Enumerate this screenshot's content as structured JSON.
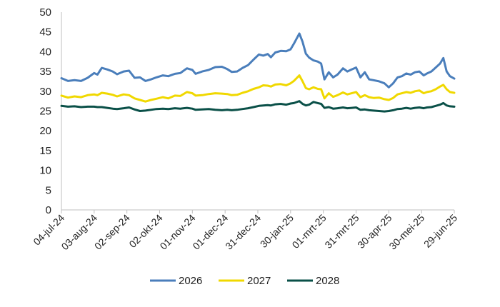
{
  "chart_data": {
    "type": "line",
    "title": "",
    "xlabel": "",
    "ylabel": "",
    "ylim": [
      0,
      50
    ],
    "yticks": [
      0,
      5,
      10,
      15,
      20,
      25,
      30,
      35,
      40,
      45,
      50
    ],
    "ytick_labels": [
      "0",
      "5",
      "10",
      "15",
      "20",
      "25",
      "30",
      "35",
      "40",
      "45",
      "50"
    ],
    "grid": false,
    "legend_position": "bottom",
    "xrange": [
      "2024-07-04",
      "2025-06-29"
    ],
    "xticks": [
      "2024-07-04",
      "2024-08-03",
      "2024-09-02",
      "2024-10-02",
      "2024-11-01",
      "2024-12-01",
      "2024-12-31",
      "2025-01-30",
      "2025-03-01",
      "2025-03-31",
      "2025-04-30",
      "2025-05-30",
      "2025-06-29"
    ],
    "xtick_labels": [
      "04-jul-24",
      "03-aug-24",
      "02-sep-24",
      "02-okt-24",
      "01-nov-24",
      "01-dec-24",
      "31-dec-24",
      "30-jan-25",
      "01-mrt-25",
      "31-mrt-25",
      "30-apr-25",
      "30-mei-25",
      "29-jun-25"
    ],
    "series": [
      {
        "name": "2026",
        "color": "#4a7ebb",
        "points": [
          [
            "2024-07-04",
            33.3
          ],
          [
            "2024-07-10",
            32.6
          ],
          [
            "2024-07-16",
            32.8
          ],
          [
            "2024-07-22",
            32.6
          ],
          [
            "2024-07-28",
            33.4
          ],
          [
            "2024-08-03",
            34.6
          ],
          [
            "2024-08-06",
            34.2
          ],
          [
            "2024-08-10",
            35.9
          ],
          [
            "2024-08-15",
            35.5
          ],
          [
            "2024-08-20",
            35.0
          ],
          [
            "2024-08-24",
            34.3
          ],
          [
            "2024-08-30",
            35.0
          ],
          [
            "2024-09-04",
            35.2
          ],
          [
            "2024-09-09",
            33.4
          ],
          [
            "2024-09-14",
            33.5
          ],
          [
            "2024-09-19",
            32.6
          ],
          [
            "2024-09-24",
            33.0
          ],
          [
            "2024-09-29",
            33.5
          ],
          [
            "2024-10-05",
            34.0
          ],
          [
            "2024-10-10",
            33.8
          ],
          [
            "2024-10-16",
            34.4
          ],
          [
            "2024-10-21",
            34.6
          ],
          [
            "2024-10-27",
            35.8
          ],
          [
            "2024-11-01",
            35.4
          ],
          [
            "2024-11-04",
            34.4
          ],
          [
            "2024-11-10",
            35.0
          ],
          [
            "2024-11-16",
            35.4
          ],
          [
            "2024-11-22",
            36.1
          ],
          [
            "2024-11-28",
            36.2
          ],
          [
            "2024-12-03",
            35.6
          ],
          [
            "2024-12-07",
            34.9
          ],
          [
            "2024-12-12",
            35.0
          ],
          [
            "2024-12-17",
            35.9
          ],
          [
            "2024-12-22",
            36.6
          ],
          [
            "2024-12-27",
            38.0
          ],
          [
            "2025-01-01",
            39.3
          ],
          [
            "2025-01-05",
            39.0
          ],
          [
            "2025-01-09",
            39.4
          ],
          [
            "2025-01-12",
            38.6
          ],
          [
            "2025-01-16",
            39.8
          ],
          [
            "2025-01-21",
            40.2
          ],
          [
            "2025-01-26",
            40.1
          ],
          [
            "2025-01-30",
            40.6
          ],
          [
            "2025-02-02",
            42.0
          ],
          [
            "2025-02-07",
            44.6
          ],
          [
            "2025-02-10",
            42.5
          ],
          [
            "2025-02-13",
            39.5
          ],
          [
            "2025-02-16",
            38.5
          ],
          [
            "2025-02-20",
            37.8
          ],
          [
            "2025-02-24",
            37.5
          ],
          [
            "2025-02-27",
            37.0
          ],
          [
            "2025-03-02",
            33.0
          ],
          [
            "2025-03-06",
            34.8
          ],
          [
            "2025-03-10",
            33.5
          ],
          [
            "2025-03-14",
            34.2
          ],
          [
            "2025-03-19",
            35.8
          ],
          [
            "2025-03-23",
            35.0
          ],
          [
            "2025-03-27",
            35.5
          ],
          [
            "2025-03-31",
            36.0
          ],
          [
            "2025-04-04",
            33.5
          ],
          [
            "2025-04-08",
            34.8
          ],
          [
            "2025-04-12",
            33.0
          ],
          [
            "2025-04-16",
            32.8
          ],
          [
            "2025-04-21",
            32.5
          ],
          [
            "2025-04-26",
            32.0
          ],
          [
            "2025-04-30",
            31.0
          ],
          [
            "2025-05-04",
            32.0
          ],
          [
            "2025-05-08",
            33.5
          ],
          [
            "2025-05-12",
            33.8
          ],
          [
            "2025-05-16",
            34.5
          ],
          [
            "2025-05-20",
            34.2
          ],
          [
            "2025-05-24",
            34.8
          ],
          [
            "2025-05-28",
            35.0
          ],
          [
            "2025-06-01",
            34.0
          ],
          [
            "2025-06-04",
            34.5
          ],
          [
            "2025-06-08",
            35.0
          ],
          [
            "2025-06-12",
            36.0
          ],
          [
            "2025-06-16",
            37.0
          ],
          [
            "2025-06-19",
            38.4
          ],
          [
            "2025-06-22",
            35.0
          ],
          [
            "2025-06-25",
            33.8
          ],
          [
            "2025-06-29",
            33.2
          ]
        ]
      },
      {
        "name": "2027",
        "color": "#f0d800",
        "points": [
          [
            "2024-07-04",
            28.9
          ],
          [
            "2024-07-10",
            28.4
          ],
          [
            "2024-07-16",
            28.7
          ],
          [
            "2024-07-22",
            28.5
          ],
          [
            "2024-07-28",
            29.0
          ],
          [
            "2024-08-03",
            29.2
          ],
          [
            "2024-08-06",
            29.0
          ],
          [
            "2024-08-10",
            29.6
          ],
          [
            "2024-08-15",
            29.4
          ],
          [
            "2024-08-20",
            29.1
          ],
          [
            "2024-08-24",
            28.7
          ],
          [
            "2024-08-30",
            29.2
          ],
          [
            "2024-09-04",
            29.0
          ],
          [
            "2024-09-09",
            28.2
          ],
          [
            "2024-09-14",
            27.8
          ],
          [
            "2024-09-19",
            27.4
          ],
          [
            "2024-09-24",
            27.8
          ],
          [
            "2024-09-29",
            28.1
          ],
          [
            "2024-10-05",
            28.5
          ],
          [
            "2024-10-10",
            28.2
          ],
          [
            "2024-10-16",
            28.9
          ],
          [
            "2024-10-21",
            28.8
          ],
          [
            "2024-10-27",
            29.8
          ],
          [
            "2024-11-01",
            29.5
          ],
          [
            "2024-11-04",
            28.9
          ],
          [
            "2024-11-10",
            29.0
          ],
          [
            "2024-11-16",
            29.3
          ],
          [
            "2024-11-22",
            29.5
          ],
          [
            "2024-11-28",
            29.4
          ],
          [
            "2024-12-03",
            29.3
          ],
          [
            "2024-12-07",
            29.0
          ],
          [
            "2024-12-12",
            29.1
          ],
          [
            "2024-12-17",
            29.6
          ],
          [
            "2024-12-22",
            30.0
          ],
          [
            "2024-12-27",
            30.6
          ],
          [
            "2025-01-01",
            31.0
          ],
          [
            "2025-01-05",
            31.5
          ],
          [
            "2025-01-09",
            31.4
          ],
          [
            "2025-01-12",
            31.2
          ],
          [
            "2025-01-16",
            31.7
          ],
          [
            "2025-01-21",
            31.8
          ],
          [
            "2025-01-26",
            31.5
          ],
          [
            "2025-01-30",
            32.0
          ],
          [
            "2025-02-02",
            32.6
          ],
          [
            "2025-02-07",
            34.0
          ],
          [
            "2025-02-10",
            32.5
          ],
          [
            "2025-02-13",
            30.8
          ],
          [
            "2025-02-16",
            30.5
          ],
          [
            "2025-02-20",
            31.0
          ],
          [
            "2025-02-24",
            30.6
          ],
          [
            "2025-02-27",
            30.5
          ],
          [
            "2025-03-02",
            28.2
          ],
          [
            "2025-03-06",
            29.5
          ],
          [
            "2025-03-10",
            28.6
          ],
          [
            "2025-03-14",
            29.0
          ],
          [
            "2025-03-19",
            29.7
          ],
          [
            "2025-03-23",
            29.2
          ],
          [
            "2025-03-27",
            29.5
          ],
          [
            "2025-03-31",
            29.8
          ],
          [
            "2025-04-04",
            28.5
          ],
          [
            "2025-04-08",
            29.0
          ],
          [
            "2025-04-12",
            28.5
          ],
          [
            "2025-04-16",
            28.3
          ],
          [
            "2025-04-21",
            28.4
          ],
          [
            "2025-04-26",
            28.0
          ],
          [
            "2025-04-30",
            27.8
          ],
          [
            "2025-05-04",
            28.3
          ],
          [
            "2025-05-08",
            29.2
          ],
          [
            "2025-05-12",
            29.5
          ],
          [
            "2025-05-16",
            29.8
          ],
          [
            "2025-05-20",
            29.6
          ],
          [
            "2025-05-24",
            30.0
          ],
          [
            "2025-05-28",
            30.2
          ],
          [
            "2025-06-01",
            29.5
          ],
          [
            "2025-06-04",
            29.8
          ],
          [
            "2025-06-08",
            30.0
          ],
          [
            "2025-06-12",
            30.5
          ],
          [
            "2025-06-16",
            31.2
          ],
          [
            "2025-06-19",
            31.6
          ],
          [
            "2025-06-22",
            30.5
          ],
          [
            "2025-06-25",
            29.8
          ],
          [
            "2025-06-29",
            29.6
          ]
        ]
      },
      {
        "name": "2028",
        "color": "#0a5048",
        "points": [
          [
            "2024-07-04",
            26.3
          ],
          [
            "2024-07-10",
            26.1
          ],
          [
            "2024-07-16",
            26.2
          ],
          [
            "2024-07-22",
            26.0
          ],
          [
            "2024-07-28",
            26.1
          ],
          [
            "2024-08-03",
            26.1
          ],
          [
            "2024-08-06",
            26.0
          ],
          [
            "2024-08-10",
            26.0
          ],
          [
            "2024-08-15",
            25.8
          ],
          [
            "2024-08-20",
            25.6
          ],
          [
            "2024-08-24",
            25.5
          ],
          [
            "2024-08-30",
            25.7
          ],
          [
            "2024-09-04",
            25.9
          ],
          [
            "2024-09-09",
            25.4
          ],
          [
            "2024-09-14",
            25.0
          ],
          [
            "2024-09-19",
            25.1
          ],
          [
            "2024-09-24",
            25.3
          ],
          [
            "2024-09-29",
            25.5
          ],
          [
            "2024-10-05",
            25.6
          ],
          [
            "2024-10-10",
            25.5
          ],
          [
            "2024-10-16",
            25.7
          ],
          [
            "2024-10-21",
            25.6
          ],
          [
            "2024-10-27",
            25.8
          ],
          [
            "2024-11-01",
            25.6
          ],
          [
            "2024-11-04",
            25.3
          ],
          [
            "2024-11-10",
            25.4
          ],
          [
            "2024-11-16",
            25.5
          ],
          [
            "2024-11-22",
            25.3
          ],
          [
            "2024-11-28",
            25.2
          ],
          [
            "2024-12-03",
            25.3
          ],
          [
            "2024-12-07",
            25.2
          ],
          [
            "2024-12-12",
            25.3
          ],
          [
            "2024-12-17",
            25.5
          ],
          [
            "2024-12-22",
            25.7
          ],
          [
            "2024-12-27",
            26.0
          ],
          [
            "2025-01-01",
            26.3
          ],
          [
            "2025-01-05",
            26.4
          ],
          [
            "2025-01-09",
            26.5
          ],
          [
            "2025-01-12",
            26.4
          ],
          [
            "2025-01-16",
            26.7
          ],
          [
            "2025-01-21",
            26.8
          ],
          [
            "2025-01-26",
            26.6
          ],
          [
            "2025-01-30",
            26.9
          ],
          [
            "2025-02-02",
            27.0
          ],
          [
            "2025-02-07",
            27.5
          ],
          [
            "2025-02-10",
            26.8
          ],
          [
            "2025-02-13",
            26.4
          ],
          [
            "2025-02-16",
            26.6
          ],
          [
            "2025-02-20",
            27.3
          ],
          [
            "2025-02-24",
            27.0
          ],
          [
            "2025-02-27",
            26.8
          ],
          [
            "2025-03-02",
            25.8
          ],
          [
            "2025-03-06",
            26.0
          ],
          [
            "2025-03-10",
            25.6
          ],
          [
            "2025-03-14",
            25.7
          ],
          [
            "2025-03-19",
            25.9
          ],
          [
            "2025-03-23",
            25.7
          ],
          [
            "2025-03-27",
            25.8
          ],
          [
            "2025-03-31",
            25.9
          ],
          [
            "2025-04-04",
            25.3
          ],
          [
            "2025-04-08",
            25.4
          ],
          [
            "2025-04-12",
            25.2
          ],
          [
            "2025-04-16",
            25.1
          ],
          [
            "2025-04-21",
            25.0
          ],
          [
            "2025-04-26",
            24.9
          ],
          [
            "2025-04-30",
            25.0
          ],
          [
            "2025-05-04",
            25.2
          ],
          [
            "2025-05-08",
            25.5
          ],
          [
            "2025-05-12",
            25.6
          ],
          [
            "2025-05-16",
            25.8
          ],
          [
            "2025-05-20",
            25.6
          ],
          [
            "2025-05-24",
            25.8
          ],
          [
            "2025-05-28",
            25.9
          ],
          [
            "2025-06-01",
            25.7
          ],
          [
            "2025-06-04",
            25.9
          ],
          [
            "2025-06-08",
            26.0
          ],
          [
            "2025-06-12",
            26.3
          ],
          [
            "2025-06-16",
            26.6
          ],
          [
            "2025-06-19",
            27.0
          ],
          [
            "2025-06-22",
            26.4
          ],
          [
            "2025-06-25",
            26.2
          ],
          [
            "2025-06-29",
            26.1
          ]
        ]
      }
    ]
  }
}
